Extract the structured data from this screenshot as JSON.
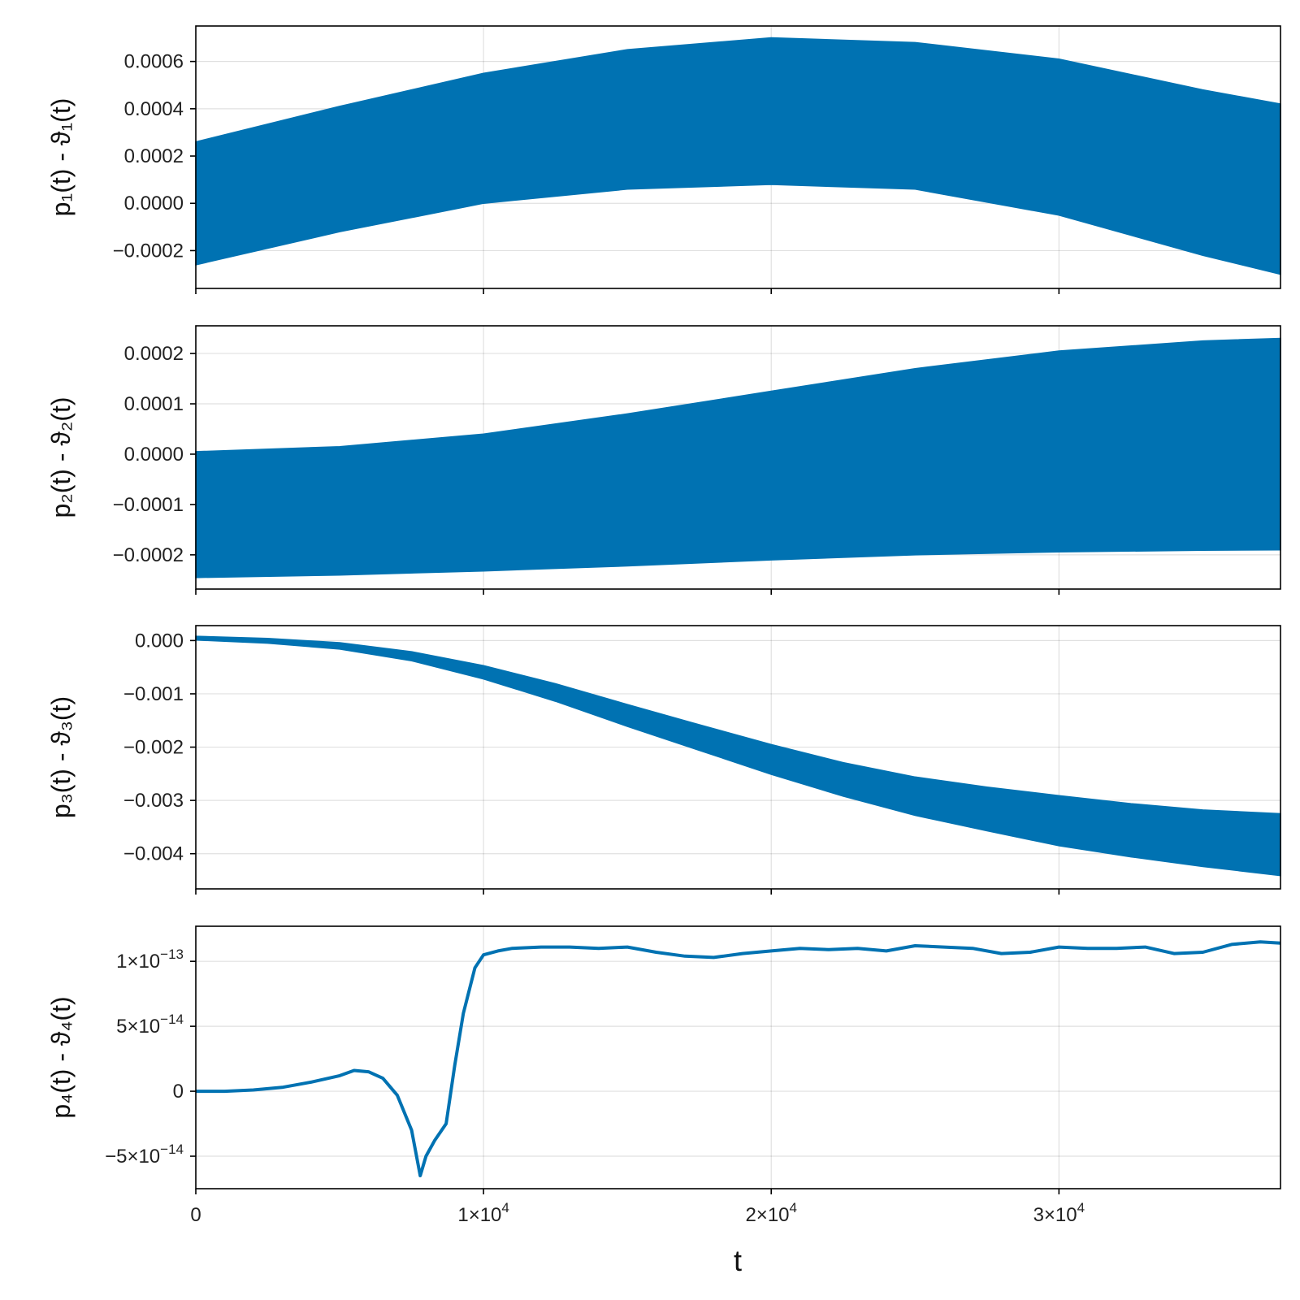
{
  "colors": {
    "series": "#0072b2"
  },
  "chart_data": {
    "type": "line",
    "x_axis": {
      "label": "t",
      "range": [
        0,
        37700
      ],
      "ticks": [
        0,
        10000,
        20000,
        30000
      ],
      "tick_labels": [
        {
          "base": "0",
          "exp": ""
        },
        {
          "base": "1×10",
          "exp": "4"
        },
        {
          "base": "2×10",
          "exp": "4"
        },
        {
          "base": "3×10",
          "exp": "4"
        }
      ]
    },
    "grid": true,
    "panels": [
      {
        "ylabel": "p₁(t) - ϑ₁(t)",
        "ylim": [
          -0.00036,
          0.00075
        ],
        "yticks": [
          -0.0002,
          0.0,
          0.0002,
          0.0004,
          0.0006
        ],
        "ytick_labels": [
          {
            "base": "−0.0002",
            "exp": ""
          },
          {
            "base": "0.0000",
            "exp": ""
          },
          {
            "base": "0.0002",
            "exp": ""
          },
          {
            "base": "0.0004",
            "exp": ""
          },
          {
            "base": "0.0006",
            "exp": ""
          }
        ],
        "band": {
          "x": [
            0,
            5000,
            10000,
            15000,
            20000,
            25000,
            30000,
            35000,
            37700
          ],
          "upper": [
            0.00026,
            0.00041,
            0.00055,
            0.00065,
            0.0007,
            0.00068,
            0.00061,
            0.00048,
            0.00042
          ],
          "lower": [
            -0.00026,
            -0.00012,
            0.0,
            6e-05,
            8e-05,
            6e-05,
            -5e-05,
            -0.00022,
            -0.0003
          ]
        }
      },
      {
        "ylabel": "p₂(t) - ϑ₂(t)",
        "ylim": [
          -0.000268,
          0.000255
        ],
        "yticks": [
          -0.0002,
          -0.0001,
          0.0,
          0.0001,
          0.0002
        ],
        "ytick_labels": [
          {
            "base": "−0.0002",
            "exp": ""
          },
          {
            "base": "−0.0001",
            "exp": ""
          },
          {
            "base": "0.0000",
            "exp": ""
          },
          {
            "base": "0.0001",
            "exp": ""
          },
          {
            "base": "0.0002",
            "exp": ""
          }
        ],
        "band": {
          "x": [
            0,
            5000,
            10000,
            15000,
            20000,
            25000,
            30000,
            35000,
            37700
          ],
          "upper": [
            5e-06,
            1.5e-05,
            4e-05,
            8e-05,
            0.000125,
            0.00017,
            0.000205,
            0.000225,
            0.00023
          ],
          "lower": [
            -0.000245,
            -0.00024,
            -0.000232,
            -0.000222,
            -0.00021,
            -0.0002,
            -0.000194,
            -0.000191,
            -0.00019
          ]
        }
      },
      {
        "ylabel": "p₃(t) - ϑ₃(t)",
        "ylim": [
          -0.00466,
          0.00028
        ],
        "yticks": [
          -0.004,
          -0.003,
          -0.002,
          -0.001,
          0.0
        ],
        "ytick_labels": [
          {
            "base": "−0.004",
            "exp": ""
          },
          {
            "base": "−0.003",
            "exp": ""
          },
          {
            "base": "−0.002",
            "exp": ""
          },
          {
            "base": "−0.001",
            "exp": ""
          },
          {
            "base": "0.000",
            "exp": ""
          }
        ],
        "band": {
          "x": [
            0,
            2500,
            5000,
            7500,
            10000,
            12500,
            15000,
            17500,
            20000,
            22500,
            25000,
            27500,
            30000,
            32500,
            35000,
            37700
          ],
          "upper": [
            8e-05,
            4e-05,
            -4e-05,
            -0.00021,
            -0.00047,
            -0.00081,
            -0.0012,
            -0.00158,
            -0.00195,
            -0.00229,
            -0.00256,
            -0.00275,
            -0.00291,
            -0.00306,
            -0.00318,
            -0.00325
          ],
          "lower": [
            1e-05,
            -5e-05,
            -0.00016,
            -0.00038,
            -0.00072,
            -0.00114,
            -0.00161,
            -0.00206,
            -0.00251,
            -0.00292,
            -0.00328,
            -0.00357,
            -0.00385,
            -0.00406,
            -0.00424,
            -0.00441
          ]
        }
      },
      {
        "ylabel": "p₄(t) - ϑ₄(t)",
        "ylim": [
          -7.5e-14,
          1.27e-13
        ],
        "yticks": [
          -5e-14,
          0,
          5e-14,
          1e-13
        ],
        "ytick_labels": [
          {
            "base": "−5×10",
            "exp": "−14"
          },
          {
            "base": "0",
            "exp": ""
          },
          {
            "base": "5×10",
            "exp": "−14"
          },
          {
            "base": "1×10",
            "exp": "−13"
          }
        ],
        "line": {
          "x": [
            0,
            1000,
            2000,
            3000,
            4000,
            5000,
            5500,
            6000,
            6500,
            7000,
            7500,
            7800,
            8000,
            8300,
            8700,
            9000,
            9300,
            9700,
            10000,
            10500,
            11000,
            12000,
            13000,
            14000,
            15000,
            16000,
            17000,
            18000,
            19000,
            20000,
            21000,
            22000,
            23000,
            24000,
            25000,
            26000,
            27000,
            28000,
            29000,
            30000,
            31000,
            32000,
            33000,
            34000,
            35000,
            36000,
            37000,
            37700
          ],
          "y": [
            0,
            0,
            1e-15,
            3e-15,
            7e-15,
            1.2e-14,
            1.6e-14,
            1.5e-14,
            1e-14,
            -3e-15,
            -3e-14,
            -6.5e-14,
            -5e-14,
            -3.8e-14,
            -2.5e-14,
            2e-14,
            6e-14,
            9.5e-14,
            1.05e-13,
            1.08e-13,
            1.1e-13,
            1.11e-13,
            1.11e-13,
            1.1e-13,
            1.11e-13,
            1.07e-13,
            1.04e-13,
            1.03e-13,
            1.06e-13,
            1.08e-13,
            1.1e-13,
            1.09e-13,
            1.1e-13,
            1.08e-13,
            1.12e-13,
            1.11e-13,
            1.1e-13,
            1.06e-13,
            1.07e-13,
            1.11e-13,
            1.1e-13,
            1.1e-13,
            1.11e-13,
            1.06e-13,
            1.07e-13,
            1.13e-13,
            1.15e-13,
            1.14e-13
          ]
        }
      }
    ]
  }
}
